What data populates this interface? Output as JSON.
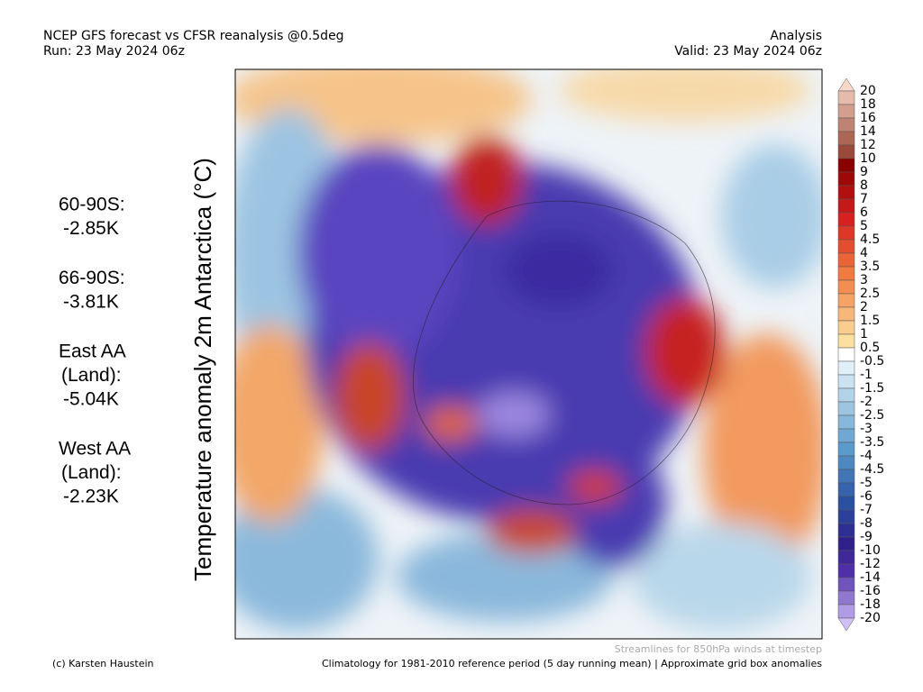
{
  "header": {
    "title": "NCEP GFS forecast vs CFSR reanalysis @0.5deg",
    "run": "Run: 23 May 2024 06z",
    "analysis": "Analysis",
    "valid": "Valid: 23 May 2024 06z"
  },
  "y_axis_label": "Temperature anomaly 2m Antarctica (°C)",
  "stats": [
    {
      "label": [
        "60-90S:"
      ],
      "value": "-2.85K"
    },
    {
      "label": [
        "66-90S:"
      ],
      "value": "-3.81K"
    },
    {
      "label": [
        "East AA",
        "(Land):"
      ],
      "value": "-5.04K"
    },
    {
      "label": [
        "West AA",
        "(Land):"
      ],
      "value": "-2.23K"
    }
  ],
  "colorbar": {
    "labels": [
      "20",
      "18",
      "16",
      "14",
      "12",
      "10",
      "9",
      "8",
      "7",
      "6",
      "5",
      "4.5",
      "4",
      "3.5",
      "3",
      "2.5",
      "2",
      "1.5",
      "1",
      "0.5",
      "-0.5",
      "-1",
      "-1.5",
      "-2",
      "-2.5",
      "-3",
      "-3.5",
      "-4",
      "-4.5",
      "-5",
      "-6",
      "-7",
      "-8",
      "-9",
      "-10",
      "-12",
      "-14",
      "-16",
      "-18",
      "-20"
    ]
  },
  "footer": {
    "streamlines": "Streamlines for 850hPa winds at timestep",
    "credit": "(c) Karsten Haustein",
    "climatology": "Climatology for 1981-2010 reference period (5 day running mean) | Approximate grid box anomalies"
  }
}
